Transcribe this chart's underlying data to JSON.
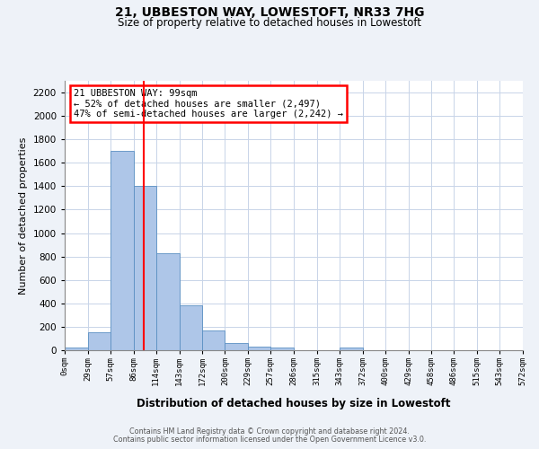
{
  "title": "21, UBBESTON WAY, LOWESTOFT, NR33 7HG",
  "subtitle": "Size of property relative to detached houses in Lowestoft",
  "xlabel": "Distribution of detached houses by size in Lowestoft",
  "ylabel": "Number of detached properties",
  "bin_edges": [
    0,
    29,
    57,
    86,
    114,
    143,
    172,
    200,
    229,
    257,
    286,
    315,
    343,
    372,
    400,
    429,
    458,
    486,
    515,
    543,
    572
  ],
  "bin_labels": [
    "0sqm",
    "29sqm",
    "57sqm",
    "86sqm",
    "114sqm",
    "143sqm",
    "172sqm",
    "200sqm",
    "229sqm",
    "257sqm",
    "286sqm",
    "315sqm",
    "343sqm",
    "372sqm",
    "400sqm",
    "429sqm",
    "458sqm",
    "486sqm",
    "515sqm",
    "543sqm",
    "572sqm"
  ],
  "bar_heights": [
    20,
    155,
    1700,
    1400,
    830,
    385,
    165,
    65,
    30,
    20,
    0,
    0,
    20,
    0,
    0,
    0,
    0,
    0,
    0,
    0
  ],
  "bar_color": "#aec6e8",
  "bar_edge_color": "#5a8fc2",
  "vline_x": 99,
  "vline_color": "red",
  "ylim": [
    0,
    2300
  ],
  "yticks": [
    0,
    200,
    400,
    600,
    800,
    1000,
    1200,
    1400,
    1600,
    1800,
    2000,
    2200
  ],
  "annotation_title": "21 UBBESTON WAY: 99sqm",
  "annotation_line1": "← 52% of detached houses are smaller (2,497)",
  "annotation_line2": "47% of semi-detached houses are larger (2,242) →",
  "annotation_box_color": "red",
  "footer_line1": "Contains HM Land Registry data © Crown copyright and database right 2024.",
  "footer_line2": "Contains public sector information licensed under the Open Government Licence v3.0.",
  "bg_color": "#eef2f8",
  "plot_bg_color": "#ffffff",
  "grid_color": "#c8d4e8"
}
